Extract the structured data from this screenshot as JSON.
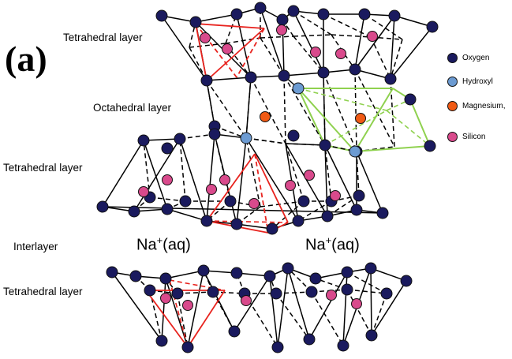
{
  "panel_label": "(a)",
  "layers": {
    "top_tetrahedral": "Tetrahedral layer",
    "octahedral": "Octahedral layer",
    "middle_tetrahedral": "Tetrahedral layer",
    "interlayer": "Interlayer",
    "bottom_tetrahedral": "Tetrahedral layer"
  },
  "ions": {
    "left": {
      "base": "Na",
      "sup": "+",
      "tail": "(aq)"
    },
    "right": {
      "base": "Na",
      "sup": "+",
      "tail": "(aq)"
    }
  },
  "legend": [
    {
      "label": "Oxygen",
      "color": "#1a1a5e",
      "icon": "oxygen-atom-icon"
    },
    {
      "label": "Hydroxyl",
      "color": "#6c9bd2",
      "icon": "hydroxyl-atom-icon"
    },
    {
      "label": "Magnesium,",
      "color": "#f05a14",
      "icon": "magnesium-atom-icon"
    },
    {
      "label": "Silicon",
      "color": "#d94a8c",
      "icon": "silicon-atom-icon"
    }
  ],
  "colors": {
    "oxygen": "#1a1a5e",
    "hydroxyl": "#6c9bd2",
    "magnesium": "#f05a14",
    "silicon": "#d94a8c",
    "bond": "#000000",
    "highlight_tetrahedron": "#e8231e",
    "highlight_octahedron": "#8fd14f"
  }
}
